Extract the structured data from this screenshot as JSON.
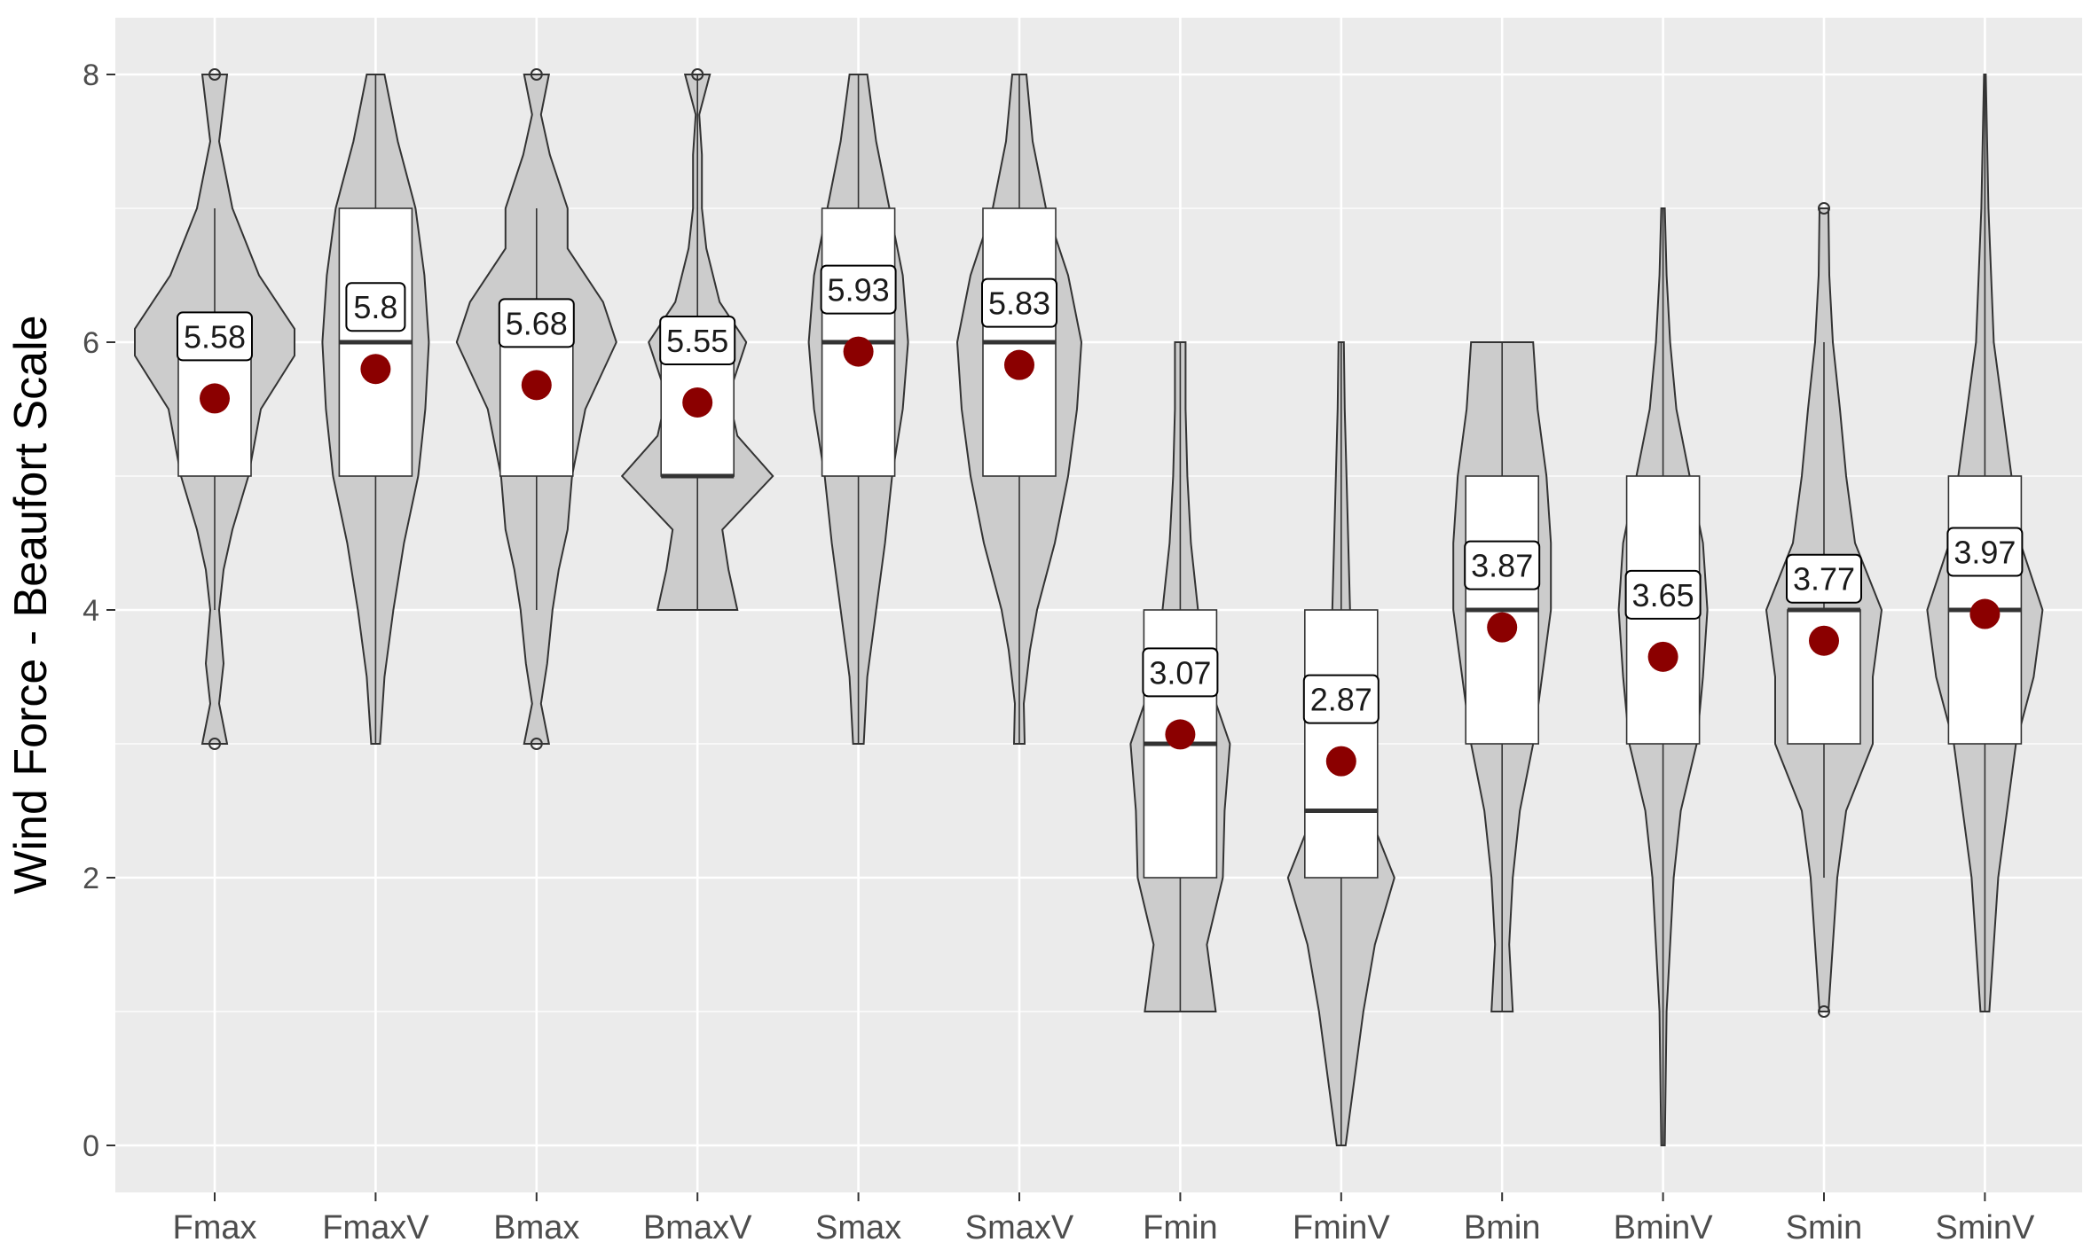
{
  "chart_data": {
    "type": "violin",
    "title": "",
    "xlabel": "",
    "ylabel": "Wind Force - Beaufort Scale",
    "ylim": [
      -0.35,
      8.35
    ],
    "y_ticks": [
      "0",
      "2",
      "4",
      "6",
      "8"
    ],
    "grid": true,
    "legend": "none",
    "categories": [
      "Fmax",
      "FmaxV",
      "Bmax",
      "BmaxV",
      "Smax",
      "SmaxV",
      "Fmin",
      "FminV",
      "Bmin",
      "BminV",
      "Smin",
      "SminV"
    ],
    "means": [
      5.58,
      5.8,
      5.68,
      5.55,
      5.93,
      5.83,
      3.07,
      2.87,
      3.87,
      3.65,
      3.77,
      3.97
    ],
    "mean_labels": [
      "5.58",
      "5.8",
      "5.68",
      "5.55",
      "5.93",
      "5.83",
      "3.07",
      "2.87",
      "3.87",
      "3.65",
      "3.77",
      "3.97"
    ],
    "boxes": [
      {
        "q1": 5,
        "median": 6,
        "q3": 6,
        "min": 4,
        "max": 7
      },
      {
        "q1": 5,
        "median": 6,
        "q3": 7,
        "min": 3,
        "max": 8
      },
      {
        "q1": 5,
        "median": 6,
        "q3": 6,
        "min": 4,
        "max": 7
      },
      {
        "q1": 5,
        "median": 5,
        "q3": 6,
        "min": 4,
        "max": 8
      },
      {
        "q1": 5,
        "median": 6,
        "q3": 7,
        "min": 3,
        "max": 8
      },
      {
        "q1": 5,
        "median": 6,
        "q3": 7,
        "min": 3,
        "max": 8
      },
      {
        "q1": 2,
        "median": 3,
        "q3": 4,
        "min": 1,
        "max": 6
      },
      {
        "q1": 2,
        "median": 2.5,
        "q3": 4,
        "min": 0,
        "max": 6
      },
      {
        "q1": 3,
        "median": 4,
        "q3": 5,
        "min": 1,
        "max": 6
      },
      {
        "q1": 3,
        "median": 4,
        "q3": 5,
        "min": 0,
        "max": 7
      },
      {
        "q1": 3,
        "median": 4,
        "q3": 4,
        "min": 2,
        "max": 6
      },
      {
        "q1": 3,
        "median": 4,
        "q3": 5,
        "min": 1,
        "max": 8
      }
    ],
    "outliers": [
      {
        "category": "Fmax",
        "values": [
          3,
          8
        ]
      },
      {
        "category": "Bmax",
        "values": [
          3,
          8
        ]
      },
      {
        "category": "BmaxV",
        "values": [
          8
        ]
      },
      {
        "category": "Smin",
        "values": [
          1,
          7
        ]
      }
    ],
    "violins": [
      {
        "min": 3,
        "max": 8,
        "density": [
          [
            3,
            0.14
          ],
          [
            3.3,
            0.05
          ],
          [
            3.6,
            0.1
          ],
          [
            4,
            0.05
          ],
          [
            4.3,
            0.1
          ],
          [
            4.6,
            0.2
          ],
          [
            5,
            0.38
          ],
          [
            5.5,
            0.52
          ],
          [
            5.9,
            0.9
          ],
          [
            6.1,
            0.9
          ],
          [
            6.5,
            0.5
          ],
          [
            7,
            0.2
          ],
          [
            7.5,
            0.05
          ],
          [
            8,
            0.14
          ]
        ]
      },
      {
        "min": 3,
        "max": 8,
        "density": [
          [
            3,
            0.05
          ],
          [
            3.5,
            0.1
          ],
          [
            4,
            0.2
          ],
          [
            4.5,
            0.32
          ],
          [
            5,
            0.48
          ],
          [
            5.5,
            0.56
          ],
          [
            6,
            0.6
          ],
          [
            6.5,
            0.55
          ],
          [
            7,
            0.45
          ],
          [
            7.5,
            0.25
          ],
          [
            8,
            0.1
          ]
        ]
      },
      {
        "min": 3,
        "max": 8,
        "density": [
          [
            3,
            0.14
          ],
          [
            3.3,
            0.05
          ],
          [
            3.6,
            0.12
          ],
          [
            4,
            0.18
          ],
          [
            4.3,
            0.25
          ],
          [
            4.6,
            0.35
          ],
          [
            5,
            0.4
          ],
          [
            5.5,
            0.55
          ],
          [
            6,
            0.9
          ],
          [
            6.3,
            0.75
          ],
          [
            6.7,
            0.35
          ],
          [
            7,
            0.35
          ],
          [
            7.4,
            0.15
          ],
          [
            7.7,
            0.05
          ],
          [
            8,
            0.14
          ]
        ]
      },
      {
        "min": 4,
        "max": 8,
        "density": [
          [
            4,
            0.45
          ],
          [
            4.3,
            0.35
          ],
          [
            4.6,
            0.28
          ],
          [
            5,
            0.85
          ],
          [
            5.3,
            0.45
          ],
          [
            5.6,
            0.35
          ],
          [
            6,
            0.55
          ],
          [
            6.3,
            0.25
          ],
          [
            6.7,
            0.1
          ],
          [
            7,
            0.05
          ],
          [
            7.4,
            0.05
          ],
          [
            7.7,
            0.02
          ],
          [
            8,
            0.14
          ]
        ]
      },
      {
        "min": 3,
        "max": 8,
        "density": [
          [
            3,
            0.06
          ],
          [
            3.5,
            0.1
          ],
          [
            4,
            0.2
          ],
          [
            4.5,
            0.3
          ],
          [
            5,
            0.38
          ],
          [
            5.5,
            0.5
          ],
          [
            6,
            0.56
          ],
          [
            6.5,
            0.5
          ],
          [
            7,
            0.35
          ],
          [
            7.5,
            0.2
          ],
          [
            8,
            0.1
          ]
        ]
      },
      {
        "min": 3,
        "max": 8,
        "density": [
          [
            3,
            0.06
          ],
          [
            3.3,
            0.05
          ],
          [
            3.7,
            0.12
          ],
          [
            4,
            0.2
          ],
          [
            4.5,
            0.4
          ],
          [
            5,
            0.55
          ],
          [
            5.5,
            0.65
          ],
          [
            6,
            0.7
          ],
          [
            6.5,
            0.55
          ],
          [
            7,
            0.3
          ],
          [
            7.5,
            0.15
          ],
          [
            8,
            0.08
          ]
        ]
      },
      {
        "min": 1,
        "max": 6,
        "density": [
          [
            1,
            0.4
          ],
          [
            1.5,
            0.3
          ],
          [
            2,
            0.48
          ],
          [
            2.5,
            0.5
          ],
          [
            3,
            0.56
          ],
          [
            3.5,
            0.3
          ],
          [
            4,
            0.2
          ],
          [
            4.5,
            0.12
          ],
          [
            5,
            0.08
          ],
          [
            5.5,
            0.06
          ],
          [
            6,
            0.06
          ]
        ]
      },
      {
        "min": 0,
        "max": 6,
        "density": [
          [
            0,
            0.05
          ],
          [
            0.5,
            0.15
          ],
          [
            1,
            0.25
          ],
          [
            1.5,
            0.38
          ],
          [
            2,
            0.6
          ],
          [
            2.5,
            0.3
          ],
          [
            3,
            0.2
          ],
          [
            3.5,
            0.15
          ],
          [
            4,
            0.1
          ],
          [
            4.5,
            0.08
          ],
          [
            5,
            0.06
          ],
          [
            5.5,
            0.04
          ],
          [
            6,
            0.03
          ]
        ]
      },
      {
        "min": 1,
        "max": 6,
        "density": [
          [
            1,
            0.12
          ],
          [
            1.5,
            0.08
          ],
          [
            2,
            0.12
          ],
          [
            2.5,
            0.2
          ],
          [
            3,
            0.35
          ],
          [
            3.5,
            0.45
          ],
          [
            4,
            0.55
          ],
          [
            4.5,
            0.55
          ],
          [
            5,
            0.5
          ],
          [
            5.5,
            0.4
          ],
          [
            6,
            0.35
          ]
        ]
      },
      {
        "min": 0,
        "max": 7,
        "density": [
          [
            0,
            0.02
          ],
          [
            1,
            0.04
          ],
          [
            2,
            0.12
          ],
          [
            2.5,
            0.2
          ],
          [
            3,
            0.38
          ],
          [
            3.5,
            0.45
          ],
          [
            4,
            0.5
          ],
          [
            4.5,
            0.45
          ],
          [
            5,
            0.3
          ],
          [
            5.5,
            0.15
          ],
          [
            6,
            0.08
          ],
          [
            6.5,
            0.04
          ],
          [
            7,
            0.02
          ]
        ]
      },
      {
        "min": 1,
        "max": 7,
        "density": [
          [
            1,
            0.05
          ],
          [
            1.5,
            0.1
          ],
          [
            2,
            0.15
          ],
          [
            2.5,
            0.25
          ],
          [
            3,
            0.55
          ],
          [
            3.5,
            0.55
          ],
          [
            4,
            0.65
          ],
          [
            4.5,
            0.35
          ],
          [
            5,
            0.25
          ],
          [
            5.5,
            0.18
          ],
          [
            6,
            0.1
          ],
          [
            6.5,
            0.06
          ],
          [
            7,
            0.05
          ]
        ]
      },
      {
        "min": 1,
        "max": 8,
        "density": [
          [
            1,
            0.05
          ],
          [
            1.5,
            0.1
          ],
          [
            2,
            0.15
          ],
          [
            3,
            0.35
          ],
          [
            3.5,
            0.55
          ],
          [
            4,
            0.65
          ],
          [
            4.5,
            0.4
          ],
          [
            5,
            0.3
          ],
          [
            5.5,
            0.2
          ],
          [
            6,
            0.1
          ],
          [
            7,
            0.04
          ],
          [
            8,
            0.01
          ]
        ]
      }
    ]
  },
  "colors": {
    "panel": "#ebebeb",
    "grid": "#ffffff",
    "violin_fill": "#cccccc",
    "violin_stroke": "#333333",
    "box_fill": "#ffffff",
    "median": "#333333",
    "mean_point": "#8b0000"
  }
}
